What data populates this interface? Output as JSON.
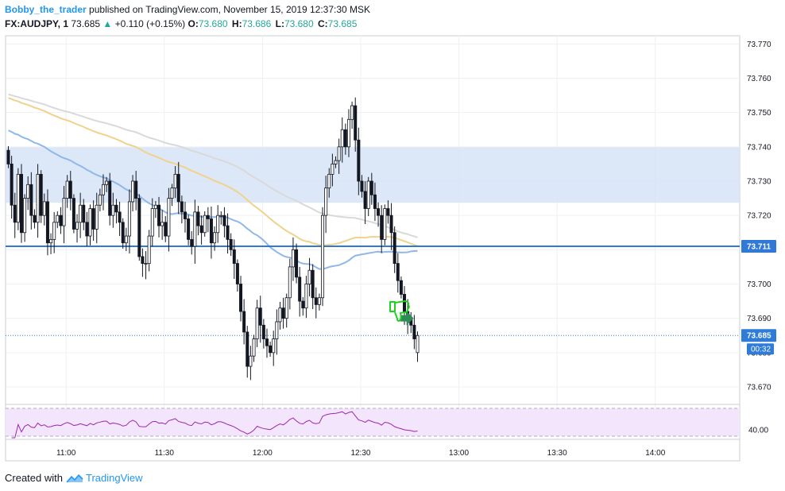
{
  "header": {
    "author": "Bobby_the_trader",
    "published": "published on TradingView.com, November 15, 2019 12:37:30 MSK",
    "symbol": "FX:AUDJPY, 1",
    "last": "73.685",
    "change": "+0.110 (+0.15%)",
    "ohlc": [
      {
        "label": "O:",
        "value": "73.680"
      },
      {
        "label": "H:",
        "value": "73.686"
      },
      {
        "label": "L:",
        "value": "73.680"
      },
      {
        "label": "C:",
        "value": "73.685"
      }
    ]
  },
  "footer": {
    "created": "Created with",
    "brand": "TradingView"
  },
  "colors": {
    "up": "#26a69a",
    "down_candle": "#131722",
    "up_candle": "#ffffff",
    "zone_fill": "#d6e4f7",
    "level_line": "#3179d6",
    "ma_fast": "#8fb8e8",
    "ma_mid": "#f0d28c",
    "ma_slow": "#d9d9d9",
    "rsi_line": "#9c27b0",
    "rsi_band": "#f3e5fb",
    "last_price_tag": "#2f7bd8"
  },
  "chart_data": {
    "type": "candlestick",
    "symbol": "FX:AUDJPY",
    "interval": "1",
    "yTicks": [
      "73.770",
      "73.760",
      "73.750",
      "73.740",
      "73.730",
      "73.720",
      "73.710",
      "73.700",
      "73.690",
      "73.680",
      "73.670"
    ],
    "ylim": [
      73.6649,
      73.7724
    ],
    "xTicks": [
      "11:00",
      "11:30",
      "12:00",
      "12:30",
      "13:00",
      "13:30",
      "14:00"
    ],
    "time_start": "10:42",
    "zone": {
      "from": 73.7237,
      "to": 73.7399
    },
    "level": {
      "value": 73.711,
      "label": "73.711"
    },
    "last_price": {
      "value": 73.685,
      "label": "73.685",
      "countdown": "00:32"
    },
    "rsi_label": "40.00",
    "closes": [
      73.735,
      73.723,
      73.718,
      73.732,
      73.715,
      73.725,
      73.729,
      73.72,
      73.718,
      73.732,
      73.72,
      73.724,
      73.712,
      73.713,
      73.718,
      73.72,
      73.717,
      73.725,
      73.73,
      73.725,
      73.716,
      73.718,
      73.723,
      73.718,
      73.714,
      73.722,
      73.716,
      73.723,
      73.726,
      73.729,
      73.73,
      73.72,
      73.723,
      73.721,
      73.718,
      73.712,
      73.714,
      73.724,
      73.73,
      73.725,
      73.708,
      73.706,
      73.706,
      73.714,
      73.722,
      73.723,
      73.717,
      73.718,
      73.714,
      73.725,
      73.728,
      73.732,
      73.724,
      73.721,
      73.719,
      73.713,
      73.711,
      73.721,
      73.717,
      73.715,
      73.72,
      73.719,
      73.712,
      73.715,
      73.72,
      73.72,
      73.717,
      73.713,
      73.71,
      73.706,
      73.7,
      73.692,
      73.686,
      73.676,
      73.679,
      73.684,
      73.693,
      73.688,
      73.684,
      73.682,
      73.68,
      73.684,
      73.689,
      73.693,
      73.69,
      73.696,
      73.705,
      73.71,
      73.702,
      73.695,
      73.693,
      73.7,
      73.704,
      73.696,
      73.694,
      73.696,
      73.72,
      73.728,
      73.732,
      73.735,
      73.736,
      73.74,
      73.745,
      73.74,
      73.748,
      73.752,
      73.742,
      73.73,
      73.727,
      73.722,
      73.73,
      73.726,
      73.722,
      73.72,
      73.713,
      73.722,
      73.72,
      73.715,
      73.706,
      73.701,
      73.697,
      73.692,
      73.69,
      73.688,
      73.684,
      73.685
    ],
    "opens": [
      73.739,
      73.735,
      73.723,
      73.718,
      73.732,
      73.715,
      73.725,
      73.729,
      73.72,
      73.718,
      73.732,
      73.72,
      73.724,
      73.712,
      73.713,
      73.718,
      73.72,
      73.717,
      73.725,
      73.73,
      73.725,
      73.716,
      73.718,
      73.723,
      73.718,
      73.714,
      73.722,
      73.716,
      73.723,
      73.726,
      73.729,
      73.73,
      73.72,
      73.723,
      73.721,
      73.718,
      73.712,
      73.714,
      73.724,
      73.73,
      73.725,
      73.708,
      73.706,
      73.706,
      73.714,
      73.722,
      73.723,
      73.717,
      73.718,
      73.714,
      73.725,
      73.728,
      73.732,
      73.724,
      73.721,
      73.719,
      73.713,
      73.711,
      73.721,
      73.717,
      73.715,
      73.72,
      73.719,
      73.712,
      73.715,
      73.72,
      73.72,
      73.717,
      73.713,
      73.71,
      73.706,
      73.7,
      73.692,
      73.686,
      73.676,
      73.679,
      73.684,
      73.693,
      73.688,
      73.684,
      73.682,
      73.68,
      73.684,
      73.689,
      73.693,
      73.69,
      73.696,
      73.705,
      73.71,
      73.702,
      73.695,
      73.693,
      73.7,
      73.704,
      73.696,
      73.694,
      73.696,
      73.72,
      73.728,
      73.732,
      73.735,
      73.736,
      73.74,
      73.745,
      73.74,
      73.748,
      73.752,
      73.742,
      73.73,
      73.727,
      73.722,
      73.73,
      73.726,
      73.722,
      73.72,
      73.713,
      73.722,
      73.72,
      73.715,
      73.706,
      73.701,
      73.697,
      73.692,
      73.69,
      73.688,
      73.68
    ]
  }
}
